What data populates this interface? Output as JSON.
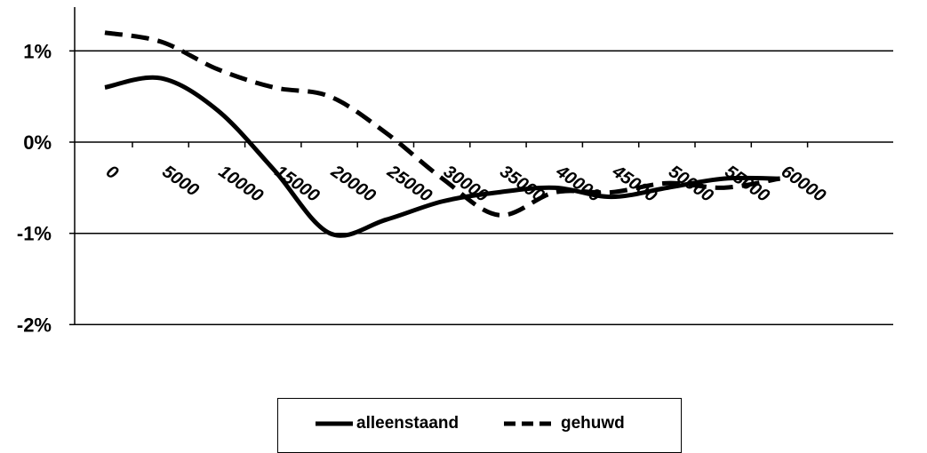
{
  "chart_data": {
    "type": "line",
    "title": "",
    "xlabel": "",
    "ylabel": "",
    "x": [
      0,
      5000,
      10000,
      15000,
      20000,
      25000,
      30000,
      35000,
      40000,
      45000,
      50000,
      55000,
      60000
    ],
    "x_tick_labels": [
      "0",
      "5000",
      "10000",
      "15000",
      "20000",
      "25000",
      "30000",
      "35000",
      "40000",
      "45000",
      "50000",
      "55000",
      "60000"
    ],
    "y_tick_labels": [
      "1%",
      "0%",
      "-1%",
      "-2%"
    ],
    "y_ticks": [
      1,
      0,
      -1,
      -2
    ],
    "ylim": [
      -2,
      1.5
    ],
    "grid": "horizontal",
    "legend_position": "bottom",
    "series": [
      {
        "name": "alleenstaand",
        "style": "solid",
        "color": "#000000",
        "values": [
          0.6,
          0.7,
          0.35,
          -0.3,
          -1.0,
          -0.85,
          -0.65,
          -0.55,
          -0.5,
          -0.6,
          -0.5,
          -0.4,
          -0.4
        ]
      },
      {
        "name": "gehuwd",
        "style": "dashed",
        "color": "#000000",
        "values": [
          1.2,
          1.1,
          0.8,
          0.6,
          0.5,
          0.1,
          -0.4,
          -0.8,
          -0.55,
          -0.55,
          -0.45,
          -0.5,
          -0.4
        ]
      }
    ]
  }
}
